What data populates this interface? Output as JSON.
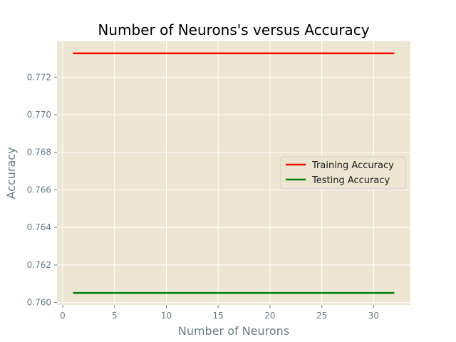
{
  "chart_data": {
    "type": "line",
    "title": "Number of Neurons's versus Accuracy",
    "xlabel": "Number of Neurons",
    "ylabel": "Accuracy",
    "x": [
      1,
      2,
      3,
      4,
      5,
      6,
      7,
      8,
      9,
      10,
      11,
      12,
      13,
      14,
      15,
      16,
      17,
      18,
      19,
      20,
      21,
      22,
      23,
      24,
      25,
      26,
      27,
      28,
      29,
      30,
      31,
      32
    ],
    "series": [
      {
        "name": "Training Accuracy",
        "color": "#ff0000",
        "values": [
          0.77327,
          0.77327,
          0.77327,
          0.77327,
          0.77327,
          0.77327,
          0.77327,
          0.77327,
          0.77327,
          0.77327,
          0.77327,
          0.77327,
          0.77327,
          0.77327,
          0.77327,
          0.77327,
          0.77327,
          0.77327,
          0.77327,
          0.77327,
          0.77327,
          0.77327,
          0.77327,
          0.77327,
          0.77327,
          0.77327,
          0.77327,
          0.77327,
          0.77327,
          0.77327,
          0.77327,
          0.77327
        ]
      },
      {
        "name": "Testing Accuracy",
        "color": "#008000",
        "values": [
          0.76051,
          0.76051,
          0.76051,
          0.76051,
          0.76051,
          0.76051,
          0.76051,
          0.76051,
          0.76051,
          0.76051,
          0.76051,
          0.76051,
          0.76051,
          0.76051,
          0.76051,
          0.76051,
          0.76051,
          0.76051,
          0.76051,
          0.76051,
          0.76051,
          0.76051,
          0.76051,
          0.76051,
          0.76051,
          0.76051,
          0.76051,
          0.76051,
          0.76051,
          0.76051,
          0.76051,
          0.76051
        ]
      }
    ],
    "xlim": [
      -0.55,
      33.55
    ],
    "ylim": [
      0.75987,
      0.77391
    ],
    "xticks": [
      0,
      5,
      10,
      15,
      20,
      25,
      30
    ],
    "xtick_labels": [
      "0",
      "5",
      "10",
      "15",
      "20",
      "25",
      "30"
    ],
    "yticks": [
      0.76,
      0.762,
      0.764,
      0.766,
      0.768,
      0.77,
      0.772
    ],
    "ytick_labels": [
      "0.760",
      "0.762",
      "0.764",
      "0.766",
      "0.768",
      "0.770",
      "0.772"
    ],
    "grid": true,
    "legend_position": "center-right",
    "style": "solarize-light",
    "background_color": "#ede6d3",
    "grid_color": "#ffffff"
  }
}
